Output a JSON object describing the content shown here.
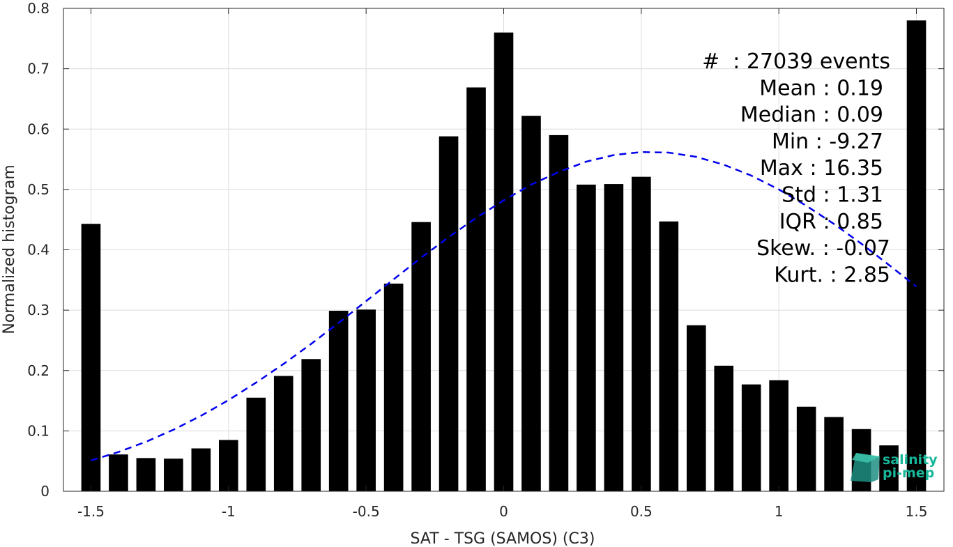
{
  "chart_data": {
    "type": "bar",
    "xlabel": "SAT - TSG (SAMOS) (C3)",
    "ylabel": "Normalized histogram",
    "xlim": [
      -1.6,
      1.6
    ],
    "ylim": [
      0,
      0.8
    ],
    "xticks": [
      -1.5,
      -1,
      -0.5,
      0,
      0.5,
      1,
      1.5
    ],
    "xtick_labels": [
      "-1.5",
      "-1",
      "-0.5",
      "0",
      "0.5",
      "1",
      "1.5"
    ],
    "yticks": [
      0,
      0.1,
      0.2,
      0.3,
      0.4,
      0.5,
      0.6,
      0.7,
      0.8
    ],
    "ytick_labels": [
      "0",
      "0.1",
      "0.2",
      "0.3",
      "0.4",
      "0.5",
      "0.6",
      "0.7",
      "0.8"
    ],
    "grid": true,
    "bar_color": "#000000",
    "x": [
      -1.5,
      -1.4,
      -1.3,
      -1.2,
      -1.1,
      -1.0,
      -0.9,
      -0.8,
      -0.7,
      -0.6,
      -0.5,
      -0.4,
      -0.3,
      -0.2,
      -0.1,
      0.0,
      0.1,
      0.2,
      0.3,
      0.4,
      0.5,
      0.6,
      0.7,
      0.8,
      0.9,
      1.0,
      1.1,
      1.2,
      1.3,
      1.4,
      1.5
    ],
    "values": [
      0.443,
      0.061,
      0.055,
      0.054,
      0.071,
      0.085,
      0.155,
      0.191,
      0.219,
      0.299,
      0.301,
      0.344,
      0.446,
      0.588,
      0.669,
      0.76,
      0.622,
      0.59,
      0.508,
      0.509,
      0.521,
      0.447,
      0.275,
      0.208,
      0.177,
      0.184,
      0.14,
      0.123,
      0.103,
      0.076,
      0.78
    ],
    "fit_curve": {
      "style": "dashed",
      "color": "#0000ee",
      "x": [
        -1.5,
        -1.4,
        -1.3,
        -1.2,
        -1.1,
        -1.0,
        -0.9,
        -0.8,
        -0.7,
        -0.6,
        -0.5,
        -0.4,
        -0.3,
        -0.2,
        -0.1,
        0.0,
        0.1,
        0.2,
        0.3,
        0.4,
        0.5,
        0.6,
        0.7,
        0.8,
        0.9,
        1.0,
        1.1,
        1.2,
        1.3,
        1.4,
        1.5
      ],
      "y": [
        0.051,
        0.065,
        0.082,
        0.102,
        0.125,
        0.151,
        0.18,
        0.211,
        0.244,
        0.279,
        0.315,
        0.351,
        0.387,
        0.421,
        0.453,
        0.482,
        0.508,
        0.529,
        0.546,
        0.557,
        0.562,
        0.561,
        0.554,
        0.541,
        0.523,
        0.5,
        0.473,
        0.443,
        0.41,
        0.375,
        0.339
      ]
    },
    "annotations": [
      "#  : 27039 events",
      "Mean : 0.19",
      "Median : 0.09",
      "Min : -9.27",
      "Max : 16.35",
      "Std : 1.31",
      "IQR : 0.85",
      "Skew. : -0.07",
      "Kurt. : 2.85"
    ]
  },
  "logo": {
    "line1": "salinity",
    "line2": "pi-mep",
    "color": "#17b79b"
  }
}
